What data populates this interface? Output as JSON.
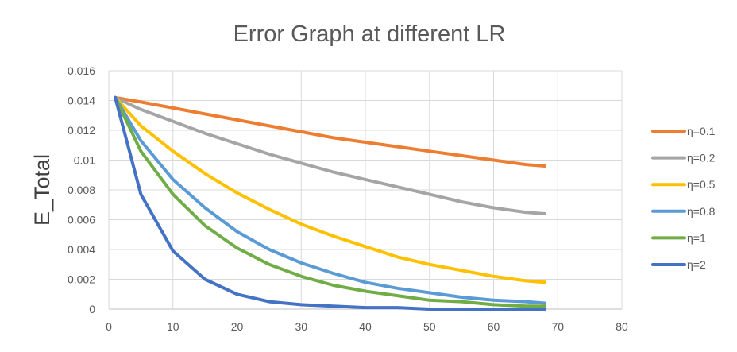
{
  "chart_data": {
    "type": "line",
    "title": "Error Graph at different LR",
    "xlabel": "",
    "ylabel": "E_Total",
    "xlim": [
      0,
      80
    ],
    "ylim": [
      0,
      0.016
    ],
    "x_ticks": [
      "0",
      "10",
      "20",
      "30",
      "40",
      "50",
      "60",
      "70",
      "80"
    ],
    "y_ticks": [
      "0",
      "0.002",
      "0.004",
      "0.006",
      "0.008",
      "0.01",
      "0.012",
      "0.014",
      "0.016"
    ],
    "grid": true,
    "legend_position": "right",
    "x": [
      1,
      5,
      10,
      15,
      20,
      25,
      30,
      35,
      40,
      45,
      50,
      55,
      60,
      65,
      68
    ],
    "series": [
      {
        "name": "η=0.1",
        "color": "#ED7D31",
        "values": [
          0.0142,
          0.0139,
          0.0135,
          0.0131,
          0.0127,
          0.0123,
          0.0119,
          0.0115,
          0.0112,
          0.0109,
          0.0106,
          0.0103,
          0.01,
          0.0097,
          0.0096
        ]
      },
      {
        "name": "η=0.2",
        "color": "#A5A5A5",
        "values": [
          0.0142,
          0.0134,
          0.0126,
          0.0118,
          0.0111,
          0.0104,
          0.0098,
          0.0092,
          0.0087,
          0.0082,
          0.0077,
          0.0072,
          0.0068,
          0.0065,
          0.0064
        ]
      },
      {
        "name": "η=0.5",
        "color": "#FFC000",
        "values": [
          0.0142,
          0.0123,
          0.0106,
          0.0091,
          0.0078,
          0.0067,
          0.0057,
          0.0049,
          0.0042,
          0.0035,
          0.003,
          0.0026,
          0.0022,
          0.0019,
          0.0018
        ]
      },
      {
        "name": "η=0.8",
        "color": "#5B9BD5",
        "values": [
          0.0142,
          0.0113,
          0.0087,
          0.0068,
          0.0052,
          0.004,
          0.0031,
          0.0024,
          0.0018,
          0.0014,
          0.0011,
          0.0008,
          0.0006,
          0.0005,
          0.0004
        ]
      },
      {
        "name": "η=1",
        "color": "#70AD47",
        "values": [
          0.0142,
          0.0106,
          0.0077,
          0.0056,
          0.0041,
          0.003,
          0.0022,
          0.0016,
          0.0012,
          0.0009,
          0.0006,
          0.0005,
          0.0003,
          0.0002,
          0.0002
        ]
      },
      {
        "name": "η=2",
        "color": "#4472C4",
        "values": [
          0.0142,
          0.0077,
          0.0039,
          0.002,
          0.001,
          0.0005,
          0.0003,
          0.0002,
          0.0001,
          0.0001,
          0.0,
          0.0,
          0.0,
          0.0,
          0.0
        ]
      }
    ]
  }
}
